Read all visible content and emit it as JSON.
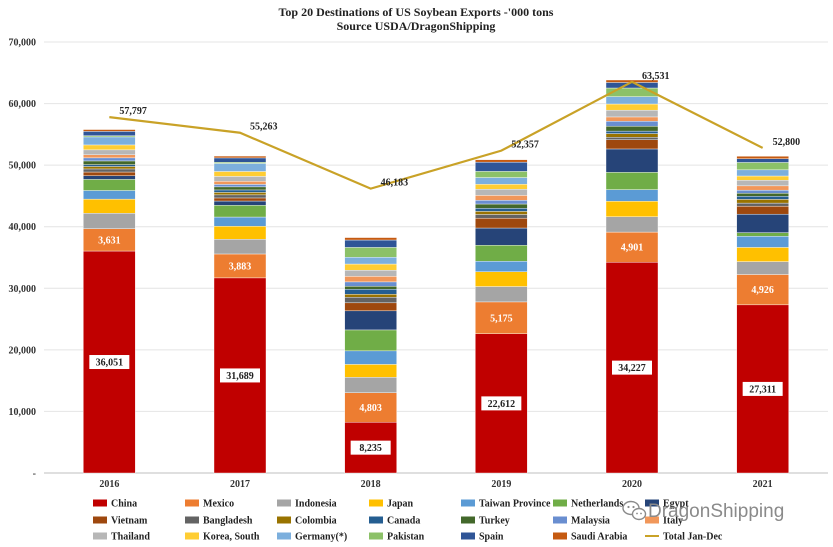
{
  "chart_data": {
    "type": "bar",
    "stacked": true,
    "title": "Top 20 Destinations of US Soybean Exports -'000 tons",
    "subtitle": "Source USDA/DragonShipping",
    "categories": [
      "2016",
      "2017",
      "2018",
      "2019",
      "2020",
      "2021"
    ],
    "ylim": [
      0,
      70000
    ],
    "y_ticks": [
      "-",
      "10,000",
      "20,000",
      "30,000",
      "40,000",
      "50,000",
      "60,000",
      "70,000"
    ],
    "y_tick_values": [
      0,
      10000,
      20000,
      30000,
      40000,
      50000,
      60000,
      70000
    ],
    "grid": true,
    "legend_position": "bottom",
    "series": [
      {
        "name": "China",
        "color": "#C00000",
        "values": [
          36051,
          31689,
          8235,
          22612,
          34227,
          27311
        ],
        "labels": [
          "36,051",
          "31,689",
          "8,235",
          "22,612",
          "34,227",
          "27,311"
        ]
      },
      {
        "name": "Mexico",
        "color": "#ED7D31",
        "values": [
          3631,
          3883,
          4803,
          5175,
          4901,
          4926
        ],
        "labels": [
          "3,631",
          "3,883",
          "4,803",
          "5,175",
          "4,901",
          "4,926"
        ]
      },
      {
        "name": "Indonesia",
        "color": "#A5A5A5",
        "values": [
          2500,
          2400,
          2500,
          2500,
          2500,
          2100
        ]
      },
      {
        "name": "Japan",
        "color": "#FFC000",
        "values": [
          2300,
          2100,
          2100,
          2400,
          2500,
          2300
        ]
      },
      {
        "name": "Taiwan Province",
        "color": "#5B9BD5",
        "values": [
          1400,
          1500,
          2200,
          1700,
          1900,
          1800
        ]
      },
      {
        "name": "Netherlands",
        "color": "#70AD47",
        "values": [
          1800,
          1900,
          3400,
          2600,
          2800,
          600
        ]
      },
      {
        "name": "Egypt",
        "color": "#264478",
        "values": [
          600,
          700,
          3100,
          2800,
          3800,
          3000
        ]
      },
      {
        "name": "Vietnam",
        "color": "#9E480E",
        "values": [
          600,
          500,
          1300,
          1600,
          1500,
          1300
        ]
      },
      {
        "name": "Bangladesh",
        "color": "#636363",
        "values": [
          500,
          500,
          900,
          600,
          400,
          500
        ]
      },
      {
        "name": "Colombia",
        "color": "#997300",
        "values": [
          400,
          400,
          500,
          500,
          600,
          600
        ]
      },
      {
        "name": "Canada",
        "color": "#255E91",
        "values": [
          300,
          400,
          800,
          500,
          400,
          500
        ]
      },
      {
        "name": "Turkey",
        "color": "#43682B",
        "values": [
          600,
          500,
          500,
          700,
          800,
          500
        ]
      },
      {
        "name": "Malaysia",
        "color": "#698ED0",
        "values": [
          500,
          400,
          700,
          600,
          800,
          500
        ]
      },
      {
        "name": "Italy",
        "color": "#F1975A",
        "values": [
          500,
          500,
          900,
          800,
          700,
          700
        ]
      },
      {
        "name": "Thailand",
        "color": "#B7B7B7",
        "values": [
          800,
          800,
          1000,
          1000,
          1100,
          900
        ]
      },
      {
        "name": "Korea, South",
        "color": "#FFCD33",
        "values": [
          800,
          800,
          1000,
          800,
          1000,
          700
        ]
      },
      {
        "name": "Germany(*)",
        "color": "#7CAFDD",
        "values": [
          1300,
          1300,
          1100,
          1100,
          1200,
          1000
        ]
      },
      {
        "name": "Pakistan",
        "color": "#8CC168",
        "values": [
          200,
          200,
          1600,
          1000,
          1400,
          1200
        ]
      },
      {
        "name": "Spain",
        "color": "#2F5597",
        "values": [
          700,
          700,
          1200,
          1500,
          900,
          600
        ]
      },
      {
        "name": "Saudi Arabia",
        "color": "#C55A11",
        "values": [
          300,
          300,
          400,
          400,
          400,
          400
        ]
      }
    ],
    "line_series": {
      "name": "Total Jan-Dec",
      "color": "#C9A227",
      "values": [
        57797,
        55263,
        46183,
        52357,
        63531,
        52800
      ],
      "labels": [
        "57,797",
        "55,263",
        "46,183",
        "52,357",
        "63,531",
        "52,800"
      ]
    }
  },
  "watermark": "DragonShipping"
}
